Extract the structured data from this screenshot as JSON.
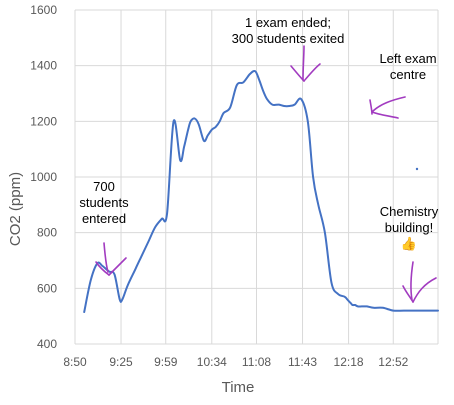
{
  "chart_data": {
    "type": "line",
    "xlabel": "Time",
    "ylabel": "CO2 (ppm)",
    "ylim": [
      400,
      1600
    ],
    "yticks": [
      400,
      600,
      800,
      1000,
      1200,
      1400,
      1600
    ],
    "xlim": [
      "8:50",
      "13:26"
    ],
    "xticks": [
      "8:50",
      "9:25",
      "9:59",
      "10:34",
      "11:08",
      "11:43",
      "12:18",
      "12:52"
    ],
    "grid": true,
    "series": [
      {
        "color": "#4472c4",
        "x": [
          "8:57",
          "9:02",
          "9:07",
          "9:11",
          "9:16",
          "9:20",
          "9:24",
          "9:26",
          "9:30",
          "9:36",
          "9:41",
          "9:46",
          "9:51",
          "9:56",
          "10:00",
          "10:05",
          "10:10",
          "10:13",
          "10:16",
          "10:18",
          "10:21",
          "10:24",
          "10:28",
          "10:31",
          "10:34",
          "10:37",
          "10:40",
          "10:43",
          "10:48",
          "10:53",
          "10:58",
          "11:03",
          "11:07",
          "11:10",
          "11:13",
          "11:16",
          "11:20",
          "11:25",
          "11:29",
          "11:33",
          "11:37",
          "11:42",
          "11:47",
          "11:51",
          "11:55",
          "12:00",
          "12:05",
          "12:10",
          "12:15",
          "12:17",
          "12:19",
          "12:20",
          "12:21",
          "12:23",
          "12:25",
          "12:28",
          "12:32",
          "12:37",
          "12:44",
          "12:52",
          "13:00",
          "13:10",
          "13:20",
          "13:26"
        ],
        "y": [
          515,
          630,
          690,
          680,
          660,
          650,
          560,
          560,
          610,
          670,
          720,
          770,
          820,
          850,
          870,
          1200,
          1060,
          1110,
          1170,
          1200,
          1210,
          1190,
          1130,
          1150,
          1170,
          1180,
          1200,
          1230,
          1250,
          1330,
          1340,
          1370,
          1380,
          1350,
          1310,
          1280,
          1260,
          1260,
          1255,
          1255,
          1260,
          1280,
          1200,
          1000,
          900,
          800,
          620,
          580,
          570,
          560,
          550,
          545,
          540,
          540,
          535,
          535,
          535,
          530,
          530,
          520,
          520,
          520,
          520,
          520
        ]
      }
    ],
    "annotations": [
      {
        "lines": [
          "700",
          "students",
          "entered"
        ],
        "x": "9:16",
        "y": 650
      },
      {
        "lines": [
          "1 exam ended;",
          "300 students exited"
        ],
        "x": "11:37",
        "y": 1360
      },
      {
        "lines": [
          "Left exam",
          "centre"
        ],
        "x": "12:19",
        "y": 1240
      },
      {
        "lines": [
          "Chemistry",
          "building!",
          "👍"
        ],
        "x": "12:59",
        "y": 550
      }
    ]
  }
}
